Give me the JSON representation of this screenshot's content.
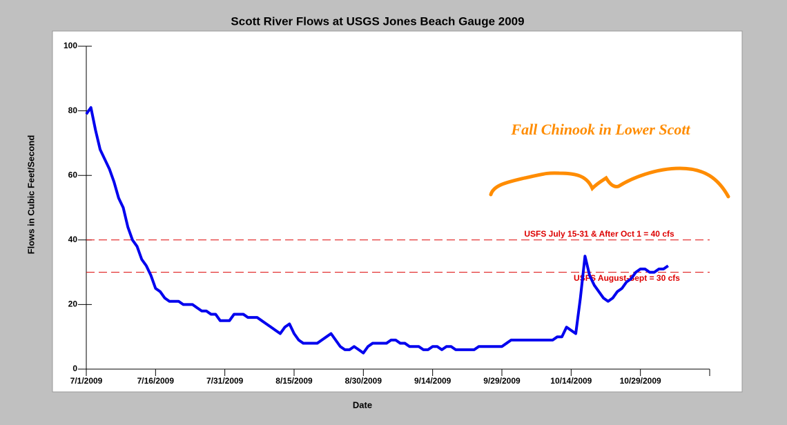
{
  "chart_data": {
    "type": "line",
    "title": "Scott River Flows at USGS Jones Beach Gauge 2009",
    "xlabel": "Date",
    "ylabel": "Flows in Cubic Feet/Second",
    "annotation": "Fall Chinook in Lower Scott",
    "x": [
      0,
      1,
      2,
      3,
      4,
      5,
      6,
      7,
      8,
      9,
      10,
      11,
      12,
      13,
      14,
      15,
      16,
      17,
      18,
      19,
      20,
      21,
      22,
      23,
      24,
      25,
      26,
      27,
      28,
      29,
      30,
      31,
      32,
      33,
      34,
      35,
      36,
      37,
      38,
      39,
      40,
      41,
      42,
      43,
      44,
      45,
      46,
      47,
      48,
      49,
      50,
      51,
      52,
      53,
      54,
      55,
      56,
      57,
      58,
      59,
      60,
      61,
      62,
      63,
      64,
      65,
      66,
      67,
      68,
      69,
      70,
      71,
      72,
      73,
      74,
      75,
      76,
      77,
      78,
      79,
      80,
      81,
      82,
      83,
      84,
      85,
      86,
      87,
      88,
      89,
      90,
      91,
      92,
      93,
      94,
      95,
      96,
      97,
      98,
      99,
      100,
      101,
      102,
      103,
      104,
      105,
      106,
      107,
      108,
      109,
      110,
      111,
      112,
      113,
      114,
      115,
      116,
      117,
      118,
      119,
      120,
      121,
      122,
      123,
      124,
      125,
      126
    ],
    "series": [
      {
        "color": "#0000ee",
        "values": [
          79,
          81,
          74,
          68,
          65,
          62,
          58,
          53,
          50,
          44,
          40,
          38,
          34,
          32,
          29,
          25,
          24,
          22,
          21,
          21,
          21,
          20,
          20,
          20,
          19,
          18,
          18,
          17,
          17,
          15,
          15,
          15,
          17,
          17,
          17,
          16,
          16,
          16,
          15,
          14,
          13,
          12,
          11,
          13,
          14,
          11,
          9,
          8,
          8,
          8,
          8,
          9,
          10,
          11,
          9,
          7,
          6,
          6,
          7,
          6,
          5,
          7,
          8,
          8,
          8,
          8,
          9,
          9,
          8,
          8,
          7,
          7,
          7,
          6,
          6,
          7,
          7,
          6,
          7,
          7,
          6,
          6,
          6,
          6,
          6,
          7,
          7,
          7,
          7,
          7,
          7,
          8,
          9,
          9,
          9,
          9,
          9,
          9,
          9,
          9,
          9,
          9,
          10,
          10,
          13,
          12,
          11,
          22,
          35,
          29,
          26,
          24,
          22,
          21,
          22,
          24,
          25,
          27,
          28,
          30,
          31,
          31,
          30,
          30,
          31,
          31,
          32
        ]
      }
    ],
    "reference_lines": [
      {
        "value": 40,
        "label": "USFS July 15-31 & After Oct 1 =  40 cfs",
        "color": "#dd0000"
      },
      {
        "value": 30,
        "label": "USFS August-Sept = 30 cfs",
        "color": "#dd0000"
      }
    ],
    "xlim": [
      0,
      135
    ],
    "xticks": [
      {
        "value": 0,
        "label": "7/1/2009"
      },
      {
        "value": 15,
        "label": "7/16/2009"
      },
      {
        "value": 30,
        "label": "7/31/2009"
      },
      {
        "value": 45,
        "label": "8/15/2009"
      },
      {
        "value": 60,
        "label": "8/30/2009"
      },
      {
        "value": 75,
        "label": "9/14/2009"
      },
      {
        "value": 90,
        "label": "9/29/2009"
      },
      {
        "value": 105,
        "label": "10/14/2009"
      },
      {
        "value": 120,
        "label": "10/29/2009"
      },
      {
        "value": 135,
        "label": null
      }
    ],
    "ylim": [
      0,
      100
    ],
    "yticks": [
      0,
      20,
      40,
      60,
      80,
      100
    ]
  }
}
